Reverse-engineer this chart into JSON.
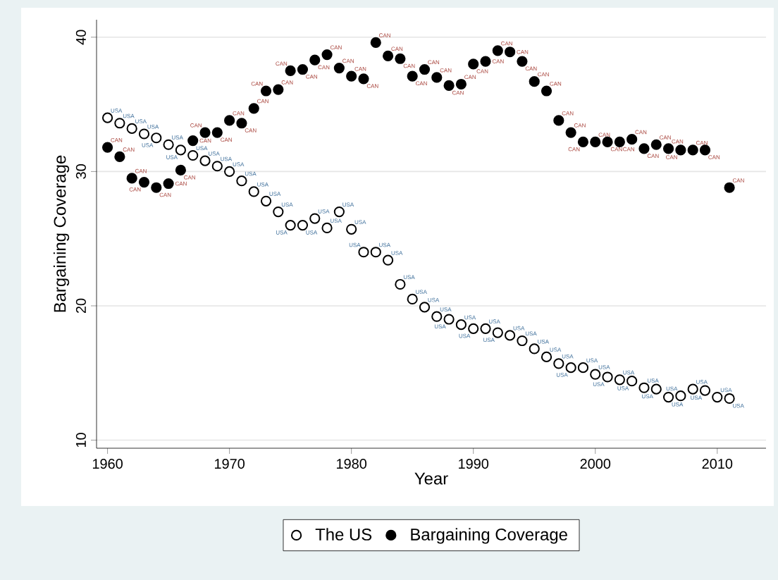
{
  "chart_data": {
    "type": "scatter",
    "xlabel": "Year",
    "ylabel": "Bargaining Coverage",
    "x": [
      1960,
      1961,
      1962,
      1963,
      1964,
      1965,
      1966,
      1967,
      1968,
      1969,
      1970,
      1971,
      1972,
      1973,
      1974,
      1975,
      1976,
      1977,
      1978,
      1979,
      1980,
      1981,
      1982,
      1983,
      1984,
      1985,
      1986,
      1987,
      1988,
      1989,
      1990,
      1991,
      1992,
      1993,
      1994,
      1995,
      1996,
      1997,
      1998,
      1999,
      2000,
      2001,
      2002,
      2003,
      2004,
      2005,
      2006,
      2007,
      2008,
      2009,
      2010,
      2011
    ],
    "series": [
      {
        "name": "The US",
        "color": "#ffffff",
        "values": [
          34.0,
          33.6,
          33.2,
          32.8,
          32.5,
          32.0,
          31.6,
          31.2,
          30.8,
          30.4,
          30.0,
          29.3,
          28.5,
          27.8,
          27.0,
          26.0,
          26.0,
          26.5,
          25.8,
          27.0,
          25.7,
          24.0,
          24.0,
          23.4,
          21.6,
          20.5,
          19.9,
          19.2,
          19.0,
          18.6,
          18.3,
          18.3,
          18.0,
          17.8,
          17.4,
          16.8,
          16.2,
          15.7,
          15.4,
          15.4,
          14.9,
          14.7,
          14.5,
          14.4,
          13.9,
          13.8,
          13.2,
          13.3,
          13.8,
          13.7,
          13.2,
          13.1
        ],
        "value_labels": [
          "USA",
          "USA",
          "USA",
          "USA",
          "USA",
          "USA",
          "USA",
          "USA",
          "USA",
          "USA",
          "USA",
          "USA",
          "USA",
          "USA",
          "USA",
          "USA",
          "USA",
          "USA",
          "USA",
          "USA",
          "USA",
          "USA",
          "USA",
          "USA",
          "USA",
          "USA",
          "USA",
          "USA",
          "USA",
          "USA",
          "USA",
          "USA",
          "USA",
          "USA",
          "USA",
          "USA",
          "USA",
          "USA",
          "USA",
          "USA",
          "USA",
          "USA",
          "USA",
          "USA",
          "USA",
          "USA",
          "USA",
          "USA",
          "USA",
          "USA",
          "USA",
          "USA"
        ]
      },
      {
        "name": "Bargaining Coverage",
        "color": "#000000",
        "values": [
          31.8,
          31.1,
          29.5,
          29.2,
          28.8,
          29.1,
          30.1,
          32.3,
          32.9,
          32.9,
          33.8,
          33.6,
          34.7,
          36.0,
          36.1,
          37.5,
          37.6,
          38.3,
          38.7,
          37.7,
          37.1,
          36.9,
          39.6,
          38.6,
          38.4,
          37.1,
          37.6,
          37.0,
          36.4,
          36.5,
          38.0,
          38.2,
          39.0,
          38.9,
          38.2,
          36.7,
          36.0,
          33.8,
          32.9,
          32.2,
          32.2,
          32.2,
          32.2,
          32.4,
          31.7,
          32.0,
          31.7,
          31.6,
          31.6,
          31.6,
          null,
          28.8
        ],
        "value_labels": [
          "CAN",
          "CAN",
          "CAN",
          "CAN",
          "CAN",
          "CAN",
          "CAN",
          "CAN",
          "CAN",
          "CAN",
          "CAN",
          "CAN",
          "CAN",
          "CAN",
          "CAN",
          "CAN",
          "CAN",
          "CAN",
          "CAN",
          "CAN",
          "CAN",
          "CAN",
          "CAN",
          "CAN",
          "CAN",
          "CAN",
          "CAN",
          "CAN",
          "CAN",
          "CAN",
          "CAN",
          "CAN",
          "CAN",
          "CAN",
          "CAN",
          "CAN",
          "CAN",
          "CAN",
          "CAN",
          "CAN",
          "CAN",
          "CAN",
          "CAN",
          "CAN",
          "CAN",
          "CAN",
          "CAN",
          "CAN",
          "CAN",
          "CAN",
          null,
          "CAN"
        ]
      }
    ],
    "xlim": [
      1959.1,
      2014
    ],
    "ylim": [
      9.4,
      41.3
    ],
    "xticks": [
      1960,
      1970,
      1980,
      1990,
      2000,
      2010
    ],
    "yticks": [
      10,
      20,
      30,
      40
    ],
    "grid": "y",
    "legend": "bottom"
  }
}
